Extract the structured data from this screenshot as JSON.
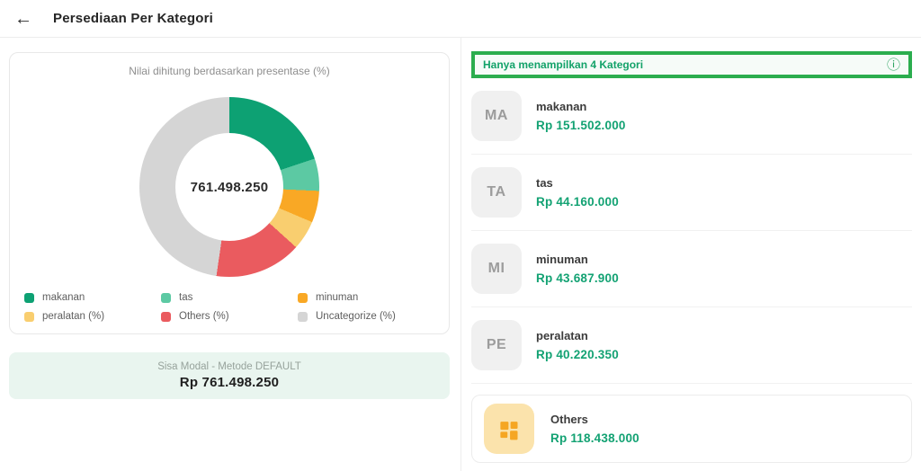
{
  "header": {
    "back_label": "←",
    "title": "Persediaan Per Kategori"
  },
  "chart_card": {
    "subtitle": "Nilai dihitung berdasarkan presentase (%)",
    "center_value": "761.498.250"
  },
  "chart_data": {
    "type": "pie",
    "style": "donut",
    "title": "Nilai dihitung berdasarkan presentase (%)",
    "center_label": "761.498.250",
    "legend_position": "bottom",
    "start_angle_deg": 0,
    "series": [
      {
        "label": "makanan",
        "value": 151502000,
        "percent": 19.9,
        "color": "#0DA173"
      },
      {
        "label": "tas",
        "value": 44160000,
        "percent": 5.8,
        "color": "#5CC9A3"
      },
      {
        "label": "minuman",
        "value": 43687900,
        "percent": 5.7,
        "color": "#F9A825"
      },
      {
        "label": "peralatan (%)",
        "value": 40220350,
        "percent": 5.3,
        "color": "#F9CE6F"
      },
      {
        "label": "Others (%)",
        "value": 118438000,
        "percent": 15.6,
        "color": "#EA5B5F"
      },
      {
        "label": "Uncategorize (%)",
        "value": 363490000,
        "percent": 47.7,
        "color": "#D5D5D5"
      }
    ]
  },
  "summary_card": {
    "label": "Sisa Modal - Metode DEFAULT",
    "value": "Rp 761.498.250"
  },
  "right_panel": {
    "banner": {
      "text": "Hanya menampilkan 4 Kategori",
      "info_icon": "ⓘ"
    },
    "categories": [
      {
        "initials": "MA",
        "name": "makanan",
        "value": "Rp 151.502.000"
      },
      {
        "initials": "TA",
        "name": "tas",
        "value": "Rp 44.160.000"
      },
      {
        "initials": "MI",
        "name": "minuman",
        "value": "Rp 43.687.900"
      },
      {
        "initials": "PE",
        "name": "peralatan",
        "value": "Rp 40.220.350"
      }
    ],
    "others": {
      "name": "Others",
      "value": "Rp 118.438.000",
      "icon": "grid-icon"
    }
  },
  "colors": {
    "accent_green": "#13A273",
    "banner_border": "#2BAD4E",
    "summary_bg": "#E9F5EF",
    "others_icon_bg": "#FBE3AC",
    "others_icon_glyph": "#F5A623"
  }
}
